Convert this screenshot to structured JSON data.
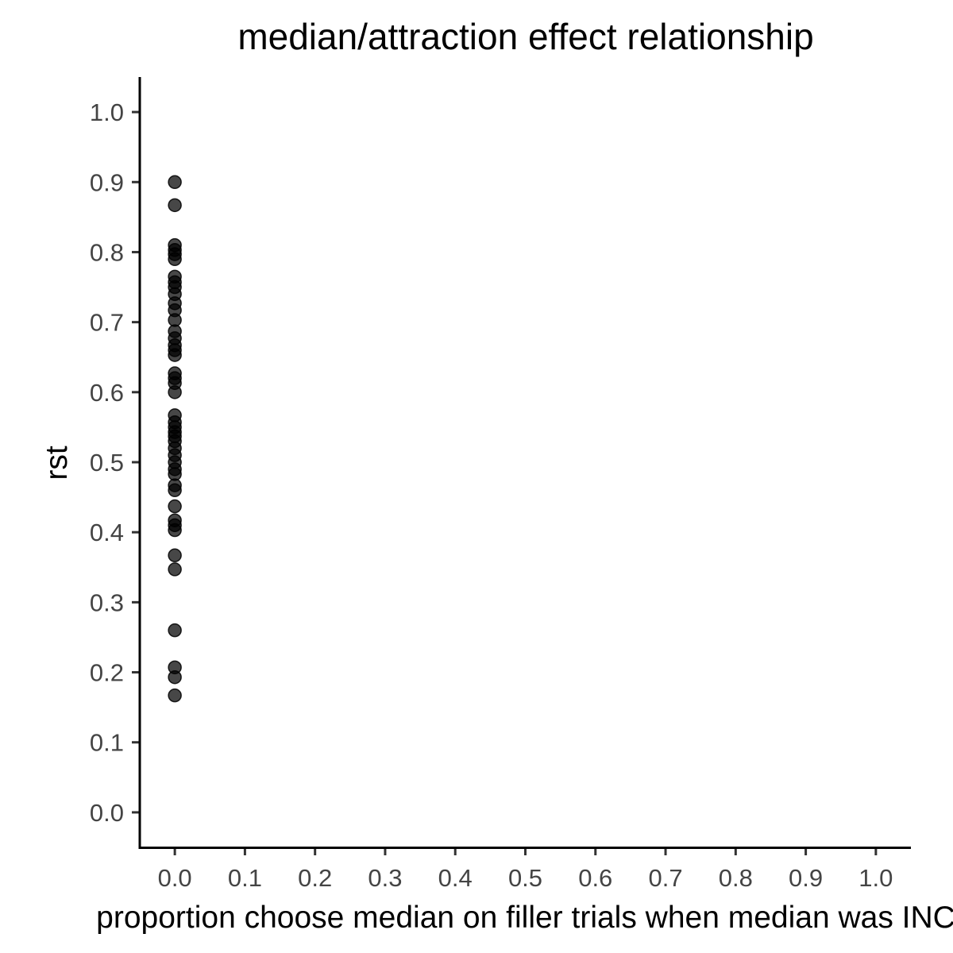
{
  "chart_data": {
    "type": "scatter",
    "title": "median/attraction effect relationship",
    "xlabel": "proportion choose median on filler trials when median was INC",
    "ylabel": "rst",
    "xlim": [
      -0.05,
      1.05
    ],
    "ylim": [
      -0.05,
      1.05
    ],
    "x_ticks": [
      "0.0",
      "0.1",
      "0.2",
      "0.3",
      "0.4",
      "0.5",
      "0.6",
      "0.7",
      "0.8",
      "0.9",
      "1.0"
    ],
    "y_ticks": [
      "0.0",
      "0.1",
      "0.2",
      "0.3",
      "0.4",
      "0.5",
      "0.6",
      "0.7",
      "0.8",
      "0.9",
      "1.0"
    ],
    "grid": false,
    "point_color": "#000000",
    "points": [
      {
        "x": 0.0,
        "y": 0.9
      },
      {
        "x": 0.0,
        "y": 0.867
      },
      {
        "x": 0.0,
        "y": 0.81
      },
      {
        "x": 0.0,
        "y": 0.803
      },
      {
        "x": 0.0,
        "y": 0.797
      },
      {
        "x": 0.0,
        "y": 0.79
      },
      {
        "x": 0.0,
        "y": 0.765
      },
      {
        "x": 0.0,
        "y": 0.757
      },
      {
        "x": 0.0,
        "y": 0.75
      },
      {
        "x": 0.0,
        "y": 0.74
      },
      {
        "x": 0.0,
        "y": 0.727
      },
      {
        "x": 0.0,
        "y": 0.717
      },
      {
        "x": 0.0,
        "y": 0.703
      },
      {
        "x": 0.0,
        "y": 0.687
      },
      {
        "x": 0.0,
        "y": 0.677
      },
      {
        "x": 0.0,
        "y": 0.667
      },
      {
        "x": 0.0,
        "y": 0.66
      },
      {
        "x": 0.0,
        "y": 0.653
      },
      {
        "x": 0.0,
        "y": 0.627
      },
      {
        "x": 0.0,
        "y": 0.62
      },
      {
        "x": 0.0,
        "y": 0.613
      },
      {
        "x": 0.0,
        "y": 0.6
      },
      {
        "x": 0.0,
        "y": 0.567
      },
      {
        "x": 0.0,
        "y": 0.557
      },
      {
        "x": 0.0,
        "y": 0.55
      },
      {
        "x": 0.0,
        "y": 0.543
      },
      {
        "x": 0.0,
        "y": 0.537
      },
      {
        "x": 0.0,
        "y": 0.53
      },
      {
        "x": 0.0,
        "y": 0.52
      },
      {
        "x": 0.0,
        "y": 0.51
      },
      {
        "x": 0.0,
        "y": 0.5
      },
      {
        "x": 0.0,
        "y": 0.49
      },
      {
        "x": 0.0,
        "y": 0.483
      },
      {
        "x": 0.0,
        "y": 0.467
      },
      {
        "x": 0.0,
        "y": 0.46
      },
      {
        "x": 0.0,
        "y": 0.437
      },
      {
        "x": 0.0,
        "y": 0.417
      },
      {
        "x": 0.0,
        "y": 0.41
      },
      {
        "x": 0.0,
        "y": 0.403
      },
      {
        "x": 0.0,
        "y": 0.367
      },
      {
        "x": 0.0,
        "y": 0.347
      },
      {
        "x": 0.0,
        "y": 0.26
      },
      {
        "x": 0.0,
        "y": 0.207
      },
      {
        "x": 0.0,
        "y": 0.193
      },
      {
        "x": 0.0,
        "y": 0.167
      }
    ]
  }
}
